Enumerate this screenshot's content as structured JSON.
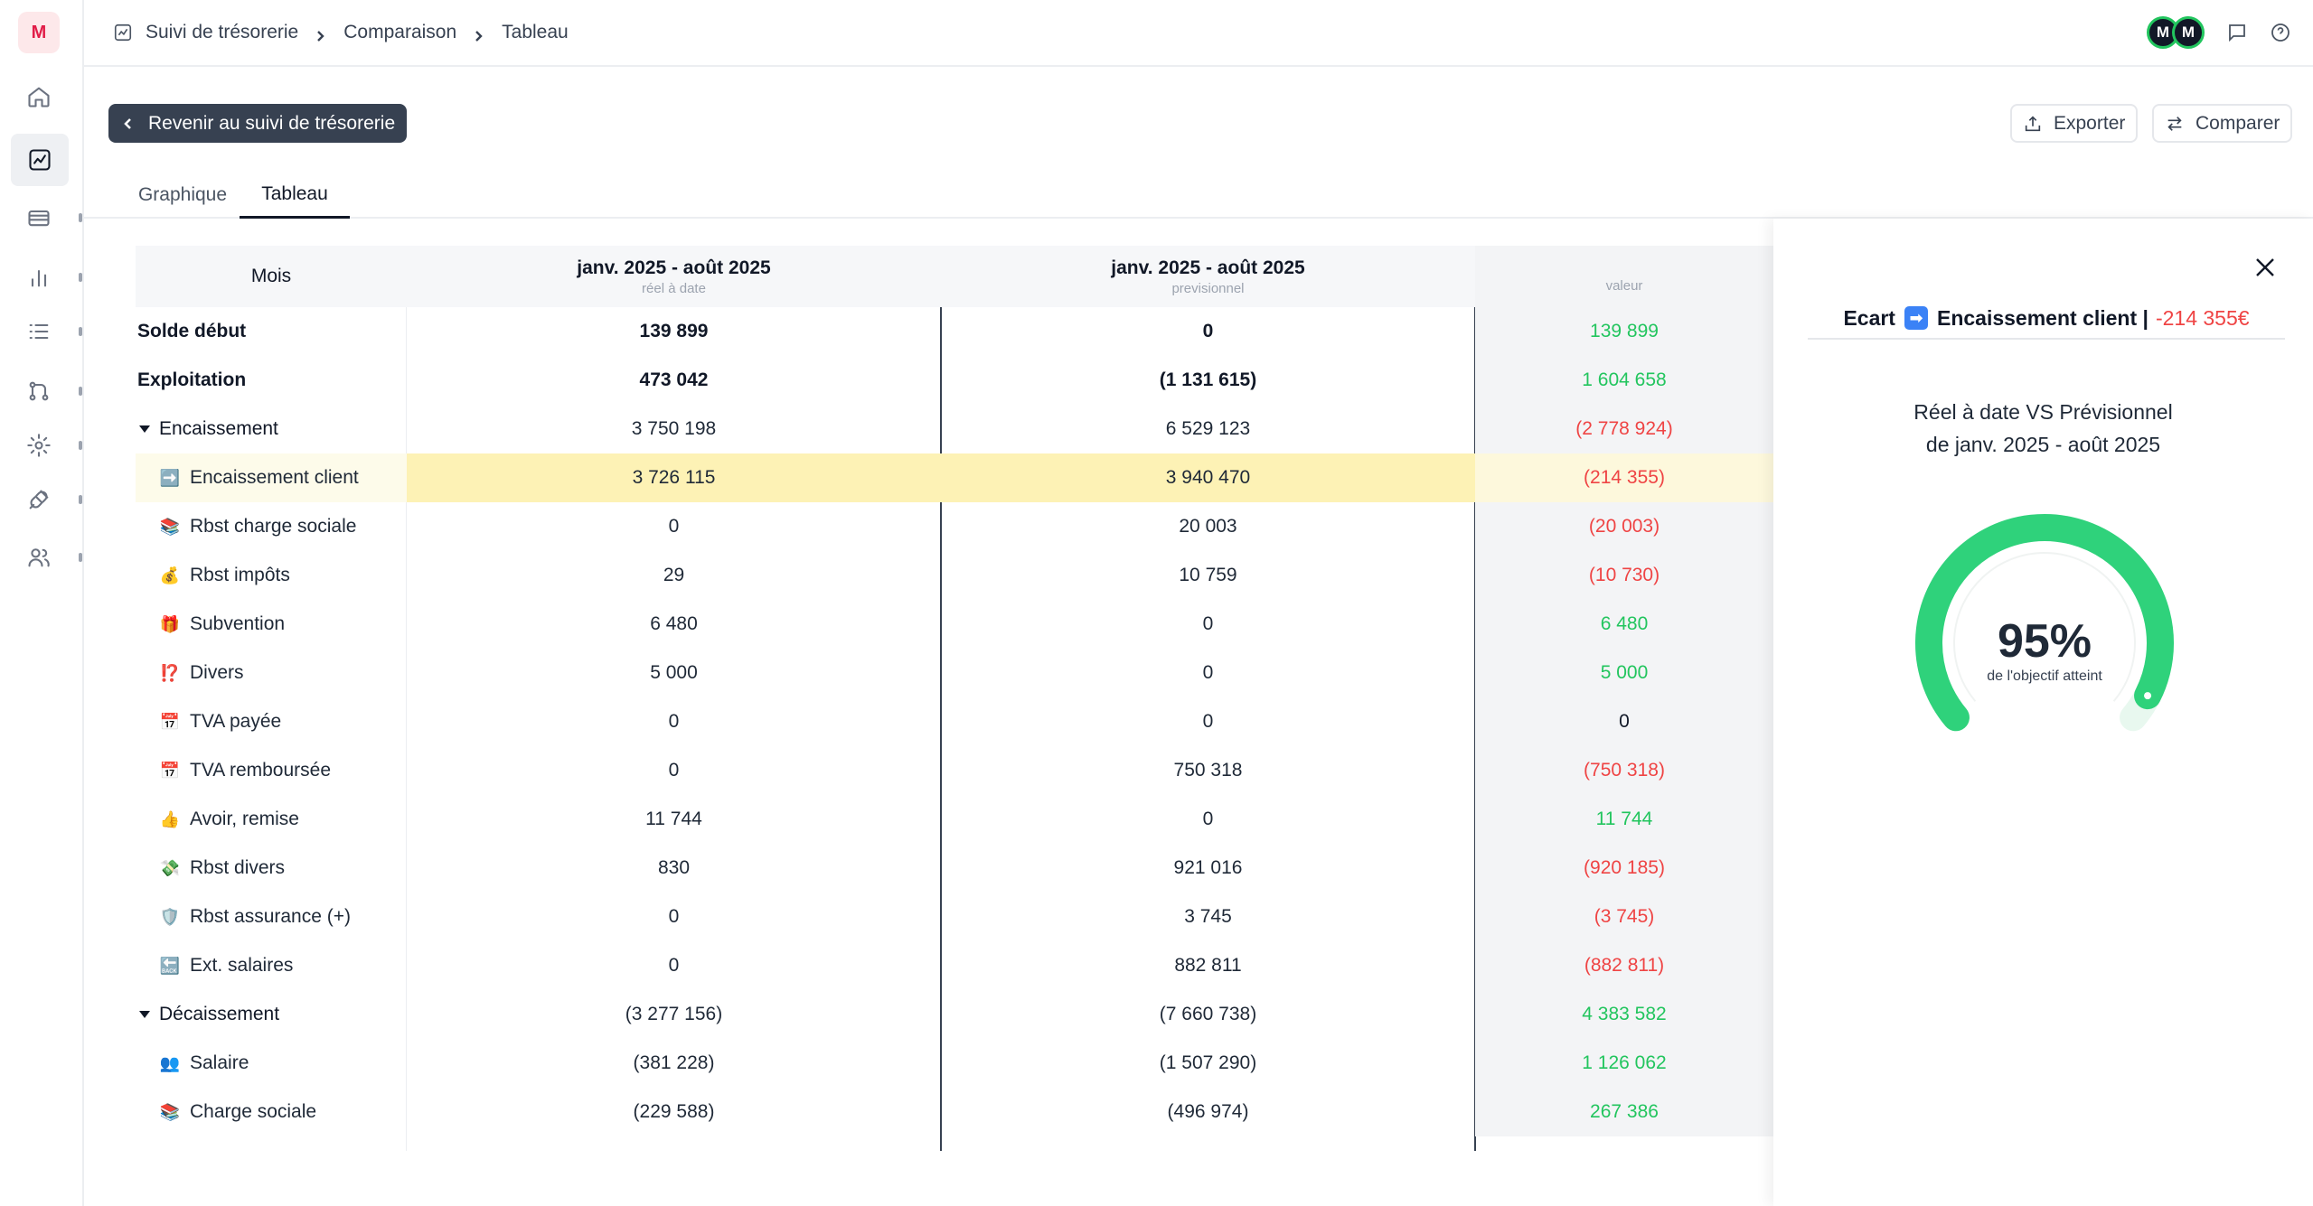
{
  "org": {
    "initial": "M"
  },
  "breadcrumb": {
    "items": [
      "Suivi de trésorerie",
      "Comparaison",
      "Tableau"
    ]
  },
  "users": [
    {
      "initial": "M"
    },
    {
      "initial": "M"
    }
  ],
  "header": {
    "back_label": "Revenir au suivi de trésorerie",
    "export_label": "Exporter",
    "compare_label": "Comparer"
  },
  "tabs": [
    {
      "label": "Graphique",
      "active": false
    },
    {
      "label": "Tableau",
      "active": true
    }
  ],
  "table": {
    "columns": [
      {
        "title": "Mois",
        "sub": ""
      },
      {
        "title": "janv. 2025 - août 2025",
        "sub": "réel à date"
      },
      {
        "title": "janv. 2025 - août 2025",
        "sub": "previsionnel"
      },
      {
        "title": "",
        "sub": "valeur"
      }
    ],
    "rows": [
      {
        "label": "Solde début",
        "kind": "bold",
        "emoji": "",
        "real": "139 899",
        "prev": "0",
        "ecart": "139 899",
        "ecart_sign": "pos"
      },
      {
        "label": "Exploitation",
        "kind": "bold",
        "emoji": "",
        "real": "473 042",
        "prev": "(1 131 615)",
        "ecart": "1 604 658",
        "ecart_sign": "pos"
      },
      {
        "label": "Encaissement",
        "kind": "group",
        "emoji": "",
        "real": "3 750 198",
        "prev": "6 529 123",
        "ecart": "(2 778 924)",
        "ecart_sign": "neg"
      },
      {
        "label": "Encaissement client",
        "kind": "sub",
        "emoji": "➡️",
        "real": "3 726 115",
        "prev": "3 940 470",
        "ecart": "(214 355)",
        "ecart_sign": "neg",
        "highlight": true
      },
      {
        "label": "Rbst charge sociale",
        "kind": "sub",
        "emoji": "📚",
        "real": "0",
        "prev": "20 003",
        "ecart": "(20 003)",
        "ecart_sign": "neg"
      },
      {
        "label": "Rbst impôts",
        "kind": "sub",
        "emoji": "💰",
        "real": "29",
        "prev": "10 759",
        "ecart": "(10 730)",
        "ecart_sign": "neg"
      },
      {
        "label": "Subvention",
        "kind": "sub",
        "emoji": "🎁",
        "real": "6 480",
        "prev": "0",
        "ecart": "6 480",
        "ecart_sign": "pos"
      },
      {
        "label": "Divers",
        "kind": "sub",
        "emoji": "⁉️",
        "real": "5 000",
        "prev": "0",
        "ecart": "5 000",
        "ecart_sign": "pos"
      },
      {
        "label": "TVA payée",
        "kind": "sub",
        "emoji": "📅",
        "real": "0",
        "prev": "0",
        "ecart": "0",
        "ecart_sign": "zero"
      },
      {
        "label": "TVA remboursée",
        "kind": "sub",
        "emoji": "📅",
        "real": "0",
        "prev": "750 318",
        "ecart": "(750 318)",
        "ecart_sign": "neg"
      },
      {
        "label": "Avoir, remise",
        "kind": "sub",
        "emoji": "👍",
        "real": "11 744",
        "prev": "0",
        "ecart": "11 744",
        "ecart_sign": "pos"
      },
      {
        "label": "Rbst divers",
        "kind": "sub",
        "emoji": "💸",
        "real": "830",
        "prev": "921 016",
        "ecart": "(920 185)",
        "ecart_sign": "neg"
      },
      {
        "label": "Rbst assurance (+)",
        "kind": "sub",
        "emoji": "🛡️",
        "real": "0",
        "prev": "3 745",
        "ecart": "(3 745)",
        "ecart_sign": "neg"
      },
      {
        "label": "Ext. salaires",
        "kind": "sub",
        "emoji": "🔙",
        "real": "0",
        "prev": "882 811",
        "ecart": "(882 811)",
        "ecart_sign": "neg"
      },
      {
        "label": "Décaissement",
        "kind": "group",
        "emoji": "",
        "real": "(3 277 156)",
        "prev": "(7 660 738)",
        "ecart": "4 383 582",
        "ecart_sign": "pos"
      },
      {
        "label": "Salaire",
        "kind": "sub",
        "emoji": "👥",
        "real": "(381 228)",
        "prev": "(1 507 290)",
        "ecart": "1 126 062",
        "ecart_sign": "pos"
      },
      {
        "label": "Charge sociale",
        "kind": "sub",
        "emoji": "📚",
        "real": "(229 588)",
        "prev": "(496 974)",
        "ecart": "267 386",
        "ecart_sign": "pos"
      }
    ]
  },
  "panel": {
    "title_prefix": "Ecart",
    "title_arrow": "➡",
    "title_name": "Encaissement client |",
    "title_value": "-214 355€",
    "subtitle_line1": "Réel à date VS Prévisionnel",
    "subtitle_line2": "de janv. 2025 - août 2025",
    "gauge_percent": 95,
    "gauge_text": "95%",
    "gauge_label": "de l'objectif atteint",
    "gauge_color": "#2fd27b"
  },
  "colors": {
    "positive": "#22c55e",
    "negative": "#ef4444",
    "highlight": "#fdf2b5",
    "dark_button": "#374151"
  }
}
